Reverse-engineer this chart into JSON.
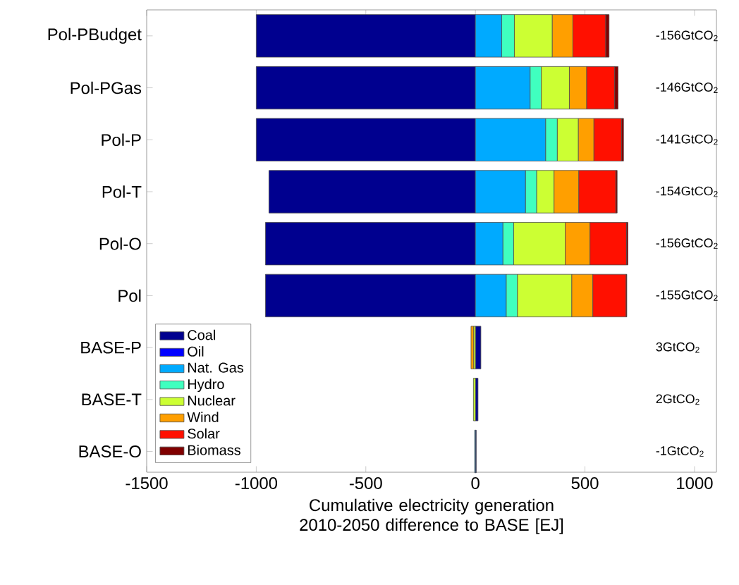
{
  "chart_data": {
    "type": "bar",
    "orientation": "horizontal",
    "stacked": true,
    "categories": [
      "Pol-PBudget",
      "Pol-PGas",
      "Pol-P",
      "Pol-T",
      "Pol-O",
      "Pol",
      "BASE-P",
      "BASE-T",
      "BASE-O"
    ],
    "series": [
      {
        "name": "Coal",
        "color": "#00008f",
        "values": [
          -1000,
          -1000,
          -1000,
          -942,
          -958,
          -958,
          25,
          12,
          4
        ]
      },
      {
        "name": "Oil",
        "color": "#0000ff",
        "values": [
          0,
          0,
          0,
          0,
          0,
          0,
          0,
          0,
          0
        ]
      },
      {
        "name": "Nat. Gas",
        "color": "#00aaff",
        "values": [
          120,
          250,
          321,
          229,
          126,
          141,
          0,
          0,
          -3
        ]
      },
      {
        "name": "Hydro",
        "color": "#40ffbf",
        "values": [
          58,
          51,
          53,
          51,
          49,
          51,
          0,
          0,
          0
        ]
      },
      {
        "name": "Nuclear",
        "color": "#ccff33",
        "values": [
          173,
          128,
          96,
          79,
          235,
          248,
          -8,
          -9,
          0
        ]
      },
      {
        "name": "Wind",
        "color": "#ff9f00",
        "values": [
          94,
          79,
          71,
          113,
          113,
          96,
          -12,
          0,
          0
        ]
      },
      {
        "name": "Solar",
        "color": "#ff1000",
        "values": [
          150,
          128,
          126,
          169,
          167,
          152,
          0,
          0,
          0
        ]
      },
      {
        "name": "Biomass",
        "color": "#800000",
        "values": [
          15,
          15,
          9,
          6,
          6,
          3,
          0,
          0,
          0
        ]
      }
    ],
    "xlim": [
      -1500,
      1100
    ],
    "xticks": [
      -1500,
      -1000,
      -500,
      0,
      500,
      1000
    ],
    "xlabel": "Cumulative electricity generation 2010-2050 difference to BASE [EJ]",
    "legend": "bottom left",
    "annotations": [
      "-156GtCO$_{2}$",
      "-146GtCO$_{2}$",
      "-141GtCO$_{2}$",
      "-154GtCO$_{2}$",
      "-156GtCO$_{2}$",
      "-155GtCO$_{2}$",
      "3GtCO$_{2}$",
      "2GtCO$_{2}$",
      "-1GtCO$_{2}$"
    ]
  }
}
